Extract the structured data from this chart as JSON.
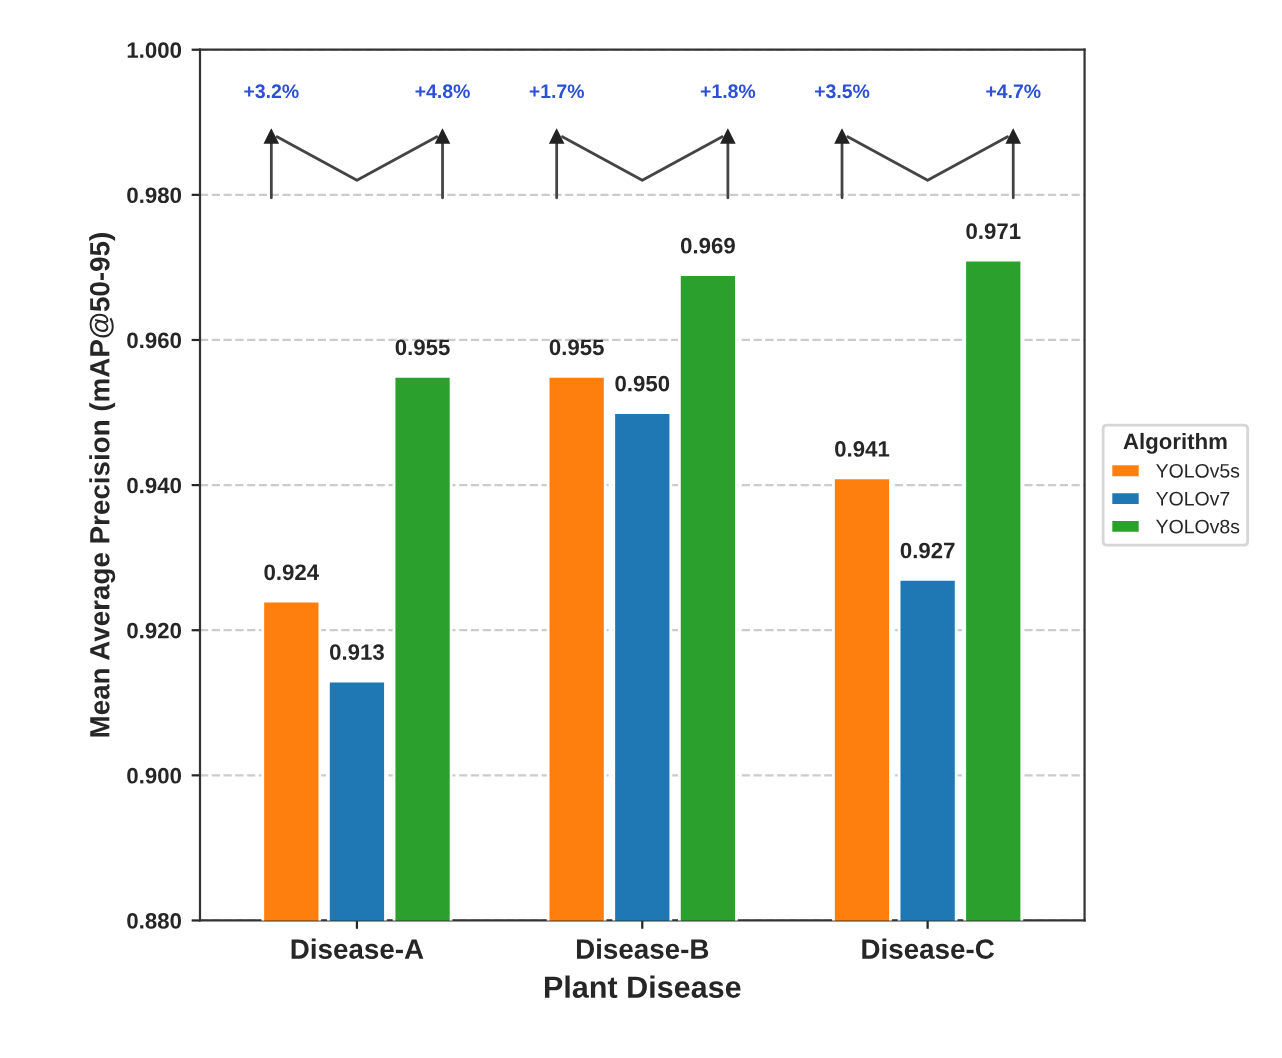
{
  "chart_data": {
    "type": "bar",
    "xlabel": "Plant Disease",
    "ylabel": "Mean Average Precision (mAP@50-95)",
    "legend_title": "Algorithm",
    "categories": [
      "Disease-A",
      "Disease-B",
      "Disease-C"
    ],
    "series": [
      {
        "name": "YOLOv5s",
        "color": "#ff7f0e",
        "values": [
          0.924,
          0.955,
          0.941
        ],
        "value_labels": [
          "0.924",
          "0.955",
          "0.941"
        ]
      },
      {
        "name": "YOLOv7",
        "color": "#1f77b4",
        "values": [
          0.913,
          0.95,
          0.927
        ],
        "value_labels": [
          "0.913",
          "0.950",
          "0.927"
        ]
      },
      {
        "name": "YOLOv8s",
        "color": "#2ca02c",
        "values": [
          0.955,
          0.969,
          0.971
        ],
        "value_labels": [
          "0.955",
          "0.969",
          "0.971"
        ]
      }
    ],
    "ylim": [
      0.88,
      1.0
    ],
    "yticks": [
      {
        "value": 0.88,
        "label": "0.880"
      },
      {
        "value": 0.9,
        "label": "0.900"
      },
      {
        "value": 0.92,
        "label": "0.920"
      },
      {
        "value": 0.94,
        "label": "0.940"
      },
      {
        "value": 0.96,
        "label": "0.960"
      },
      {
        "value": 0.98,
        "label": "0.980"
      },
      {
        "value": 1.0,
        "label": "1.000"
      }
    ],
    "annotations": [
      "+3.2%",
      "+4.8%",
      "+1.7%",
      "+1.8%",
      "+3.5%",
      "+4.7%"
    ],
    "grid": "y",
    "legend": "right"
  }
}
